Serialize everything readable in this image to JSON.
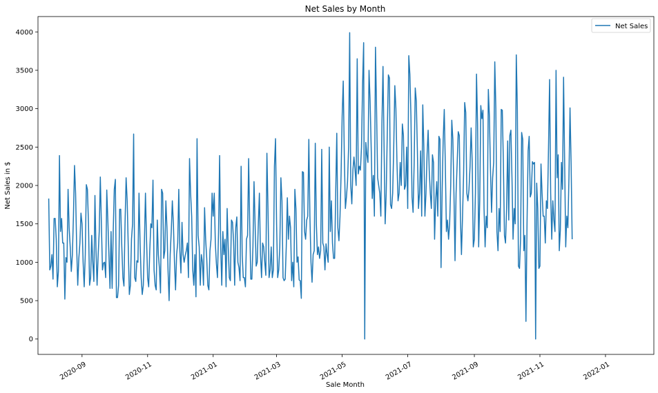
{
  "chart_data": {
    "type": "line",
    "title": "Net Sales by Month",
    "xlabel": "Sale Month",
    "ylabel": "Net Sales in $",
    "xlim": [
      "2020-07-22",
      "2022-02-15"
    ],
    "ylim": [
      -200,
      4200
    ],
    "y_ticks": [
      0,
      500,
      1000,
      1500,
      2000,
      2500,
      3000,
      3500,
      4000
    ],
    "x_ticks": [
      {
        "date": "2020-09-01",
        "label": "2020-09"
      },
      {
        "date": "2020-11-01",
        "label": "2020-11"
      },
      {
        "date": "2021-01-01",
        "label": "2021-01"
      },
      {
        "date": "2021-03-01",
        "label": "2021-03"
      },
      {
        "date": "2021-05-01",
        "label": "2021-05"
      },
      {
        "date": "2021-07-01",
        "label": "2021-07"
      },
      {
        "date": "2021-09-01",
        "label": "2021-09"
      },
      {
        "date": "2021-11-01",
        "label": "2021-11"
      },
      {
        "date": "2022-01-01",
        "label": "2022-01"
      }
    ],
    "grid": false,
    "legend_position": "top-right",
    "series": [
      {
        "name": "Net Sales",
        "color": "#1f77b4",
        "x_start": "2020-08-01",
        "x_step_days": 1,
        "values": [
          1830,
          900,
          950,
          1100,
          780,
          1570,
          1570,
          1300,
          680,
          880,
          2390,
          1400,
          1570,
          1250,
          1250,
          520,
          1060,
          1000,
          1950,
          1450,
          1200,
          880,
          1100,
          1600,
          2260,
          1900,
          1200,
          700,
          1050,
          1250,
          1640,
          1500,
          1000,
          680,
          1100,
          2010,
          1950,
          1500,
          700,
          800,
          1350,
          1000,
          750,
          1870,
          1150,
          700,
          1100,
          1400,
          2110,
          1500,
          900,
          990,
          1000,
          800,
          1940,
          1550,
          1100,
          660,
          1400,
          660,
          1400,
          1950,
          2080,
          540,
          540,
          700,
          1690,
          1690,
          1200,
          800,
          690,
          1500,
          2100,
          1800,
          1200,
          580,
          700,
          1300,
          1500,
          2670,
          800,
          750,
          1020,
          1000,
          1900,
          1250,
          800,
          580,
          700,
          1250,
          1900,
          1300,
          800,
          680,
          1150,
          1500,
          1450,
          2070,
          900,
          700,
          640,
          1550,
          1100,
          920,
          600,
          1950,
          1900,
          1050,
          1150,
          1800,
          1450,
          900,
          500,
          1100,
          1400,
          1800,
          1500,
          1000,
          640,
          1100,
          1250,
          1950,
          1150,
          860,
          1520,
          1100,
          1000,
          1090,
          1150,
          1250,
          800,
          2350,
          1900,
          1600,
          900,
          700,
          1100,
          550,
          2610,
          1350,
          1200,
          700,
          1100,
          1000,
          700,
          1710,
          1300,
          1050,
          700,
          640,
          1150,
          1300,
          1900,
          1600,
          1900,
          1250,
          980,
          800,
          1400,
          2390,
          1200,
          700,
          1400,
          1100,
          1300,
          680,
          1700,
          1200,
          800,
          760,
          1550,
          1520,
          1270,
          700,
          1450,
          1590,
          1000,
          930,
          760,
          2250,
          1100,
          800,
          800,
          680,
          1300,
          1350,
          2350,
          1500,
          780,
          780,
          1200,
          2050,
          1500,
          950,
          1000,
          1500,
          1900,
          1100,
          800,
          1250,
          1200,
          1000,
          830,
          2420,
          1700,
          800,
          900,
          1200,
          800,
          900,
          2250,
          2610,
          1500,
          800,
          900,
          1200,
          2100,
          1800,
          800,
          760,
          780,
          1200,
          1840,
          1300,
          1600,
          1450,
          760,
          1000,
          680,
          1950,
          1700,
          1000,
          1070,
          770,
          760,
          530,
          2180,
          2170,
          1400,
          1300,
          1550,
          1600,
          2600,
          1600,
          1000,
          740,
          1100,
          1150,
          2550,
          1500,
          1100,
          1200,
          1050,
          1150,
          2470,
          1250,
          1200,
          900,
          1240,
          1100,
          1000,
          2500,
          1400,
          1800,
          1250,
          1050,
          1050,
          1900,
          2680,
          1450,
          1280,
          1600,
          2140,
          2900,
          3360,
          2400,
          1700,
          1850,
          2050,
          2500,
          3990,
          2000,
          1760,
          2200,
          2370,
          2200,
          2000,
          3650,
          2150,
          2250,
          2200,
          2500,
          3320,
          3860,
          0,
          2560,
          2400,
          2300,
          3500,
          3100,
          2500,
          1830,
          2130,
          1600,
          3800,
          3000,
          2100,
          2000,
          1900,
          1600,
          2800,
          3550,
          2500,
          1500,
          1900,
          2700,
          3440,
          3400,
          1750,
          1700,
          1900,
          2500,
          3300,
          3000,
          2300,
          1800,
          1900,
          2300,
          2000,
          2800,
          2650,
          1950,
          2000,
          2500,
          1700,
          3690,
          3450,
          2900,
          1850,
          1650,
          2300,
          3270,
          3100,
          2450,
          1700,
          1900,
          2450,
          1600,
          3050,
          2500,
          1600,
          1900,
          2400,
          2720,
          2200,
          1900,
          1700,
          2400,
          2300,
          1300,
          1800,
          2050,
          1600,
          2640,
          2600,
          930,
          1900,
          2600,
          2990,
          2250,
          1400,
          1550,
          1300,
          1500,
          2000,
          2850,
          2600,
          1900,
          1020,
          1900,
          2290,
          2700,
          2650,
          1600,
          1100,
          1600,
          2150,
          3080,
          2950,
          1900,
          1800,
          1950,
          2250,
          2750,
          2300,
          1200,
          1300,
          1900,
          3450,
          2800,
          1200,
          1800,
          3040,
          2870,
          2980,
          1700,
          1200,
          1600,
          1450,
          3250,
          2900,
          2200,
          1650,
          2100,
          2300,
          3610,
          3000,
          1400,
          1150,
          1700,
          1400,
          2990,
          2980,
          2300,
          1350,
          1250,
          1700,
          2580,
          1550,
          2650,
          2720,
          2100,
          1300,
          1700,
          1500,
          3700,
          3000,
          950,
          920,
          1300,
          2690,
          2600,
          1150,
          1350,
          230,
          1500,
          2450,
          2640,
          1850,
          1900,
          2310,
          2280,
          2300,
          0,
          2030,
          1700,
          920,
          950,
          2280,
          1900,
          1600,
          1600,
          1250,
          1800,
          1700,
          2500,
          3380,
          1900,
          1300,
          1800,
          1550,
          1400,
          3500,
          2100,
          2400,
          1150,
          1420,
          2300,
          1950,
          3410,
          2300,
          1200,
          1600,
          1450,
          2100,
          3010,
          2300,
          1300
        ]
      }
    ]
  }
}
